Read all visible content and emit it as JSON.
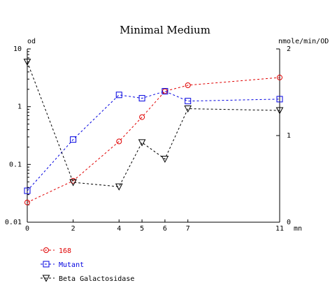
{
  "chart_data": {
    "type": "line",
    "title": "Minimal Medium",
    "left_axis": {
      "label": "od",
      "scale": "log",
      "ylim": [
        0.01,
        10
      ],
      "ticks": [
        {
          "value": 10,
          "label": "10"
        },
        {
          "value": 1,
          "label": "1"
        },
        {
          "value": 0.1,
          "label": "0.1"
        },
        {
          "value": 0.01,
          "label": "0.01"
        }
      ]
    },
    "right_axis": {
      "label": "nmole/min/OD",
      "scale": "linear",
      "ylim": [
        0,
        2
      ],
      "ticks": [
        {
          "value": 2,
          "label": "2"
        },
        {
          "value": 1,
          "label": "1"
        },
        {
          "value": 0,
          "label": "0"
        }
      ]
    },
    "x_axis": {
      "label": "mn",
      "xlim": [
        0,
        11
      ],
      "ticks": [
        {
          "value": 0,
          "label": "0"
        },
        {
          "value": 2,
          "label": "2"
        },
        {
          "value": 4,
          "label": "4"
        },
        {
          "value": 5,
          "label": "5"
        },
        {
          "value": 6,
          "label": "6"
        },
        {
          "value": 7,
          "label": "7"
        },
        {
          "value": 11,
          "label": "11"
        }
      ]
    },
    "series": [
      {
        "name": "168",
        "axis": "left",
        "marker": "circle",
        "color": "#e00000",
        "x": [
          0,
          2,
          4,
          5,
          6,
          7,
          11
        ],
        "y": [
          0.022,
          0.052,
          0.25,
          0.66,
          1.85,
          2.35,
          3.2
        ]
      },
      {
        "name": "Mutant",
        "axis": "left",
        "marker": "square",
        "color": "#0000e0",
        "x": [
          0,
          2,
          4,
          5,
          6,
          7,
          11
        ],
        "y": [
          0.035,
          0.27,
          1.6,
          1.4,
          1.85,
          1.25,
          1.35
        ]
      },
      {
        "name": "Beta Galactosidase",
        "axis": "right",
        "marker": "triangle-down",
        "color": "#000000",
        "x": [
          0,
          2,
          4,
          5,
          6,
          7,
          11
        ],
        "y": [
          1.85,
          0.46,
          0.41,
          0.92,
          0.73,
          1.31,
          1.29
        ]
      }
    ]
  }
}
